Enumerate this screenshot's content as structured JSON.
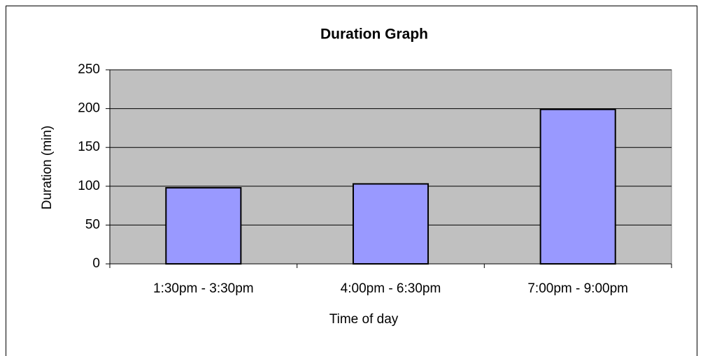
{
  "chart_data": {
    "type": "bar",
    "title": "Duration  Graph",
    "x_label": "Time of day",
    "y_label": "Duration (min)",
    "categories": [
      "1:30pm - 3:30pm",
      "4:00pm - 6:30pm",
      "7:00pm - 9:00pm"
    ],
    "values": [
      98,
      103,
      199
    ],
    "color": "#9999ff",
    "ylim": [
      0,
      250
    ],
    "yticks": [
      0,
      50,
      100,
      150,
      200,
      250
    ],
    "grid": true
  }
}
